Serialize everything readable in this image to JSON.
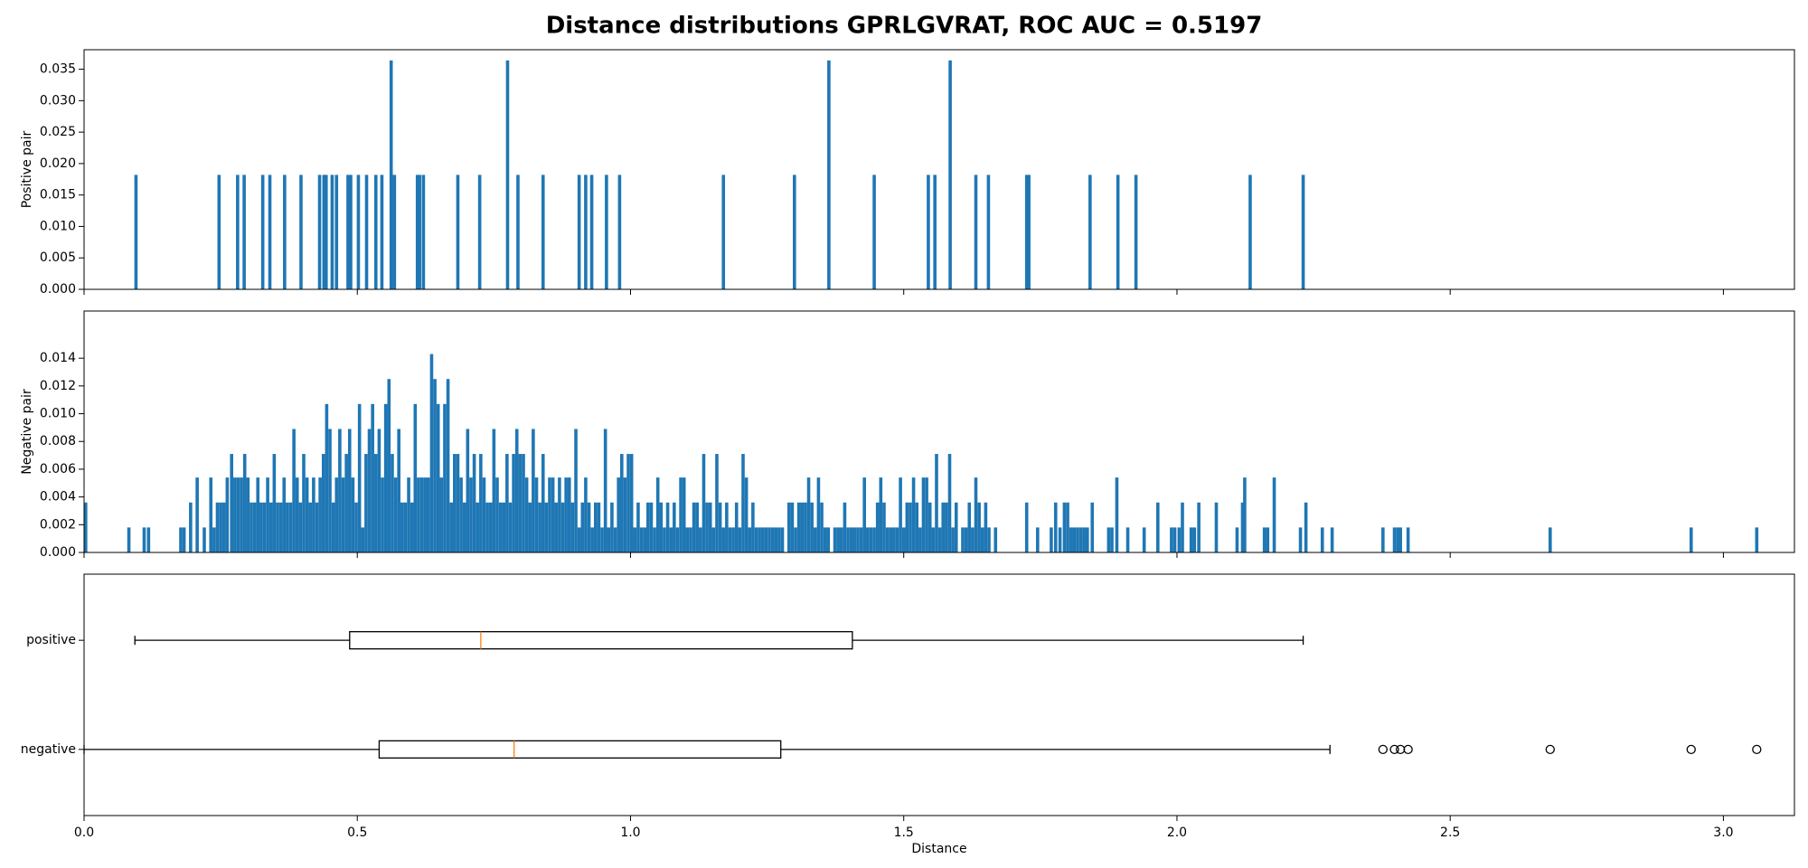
{
  "chart_data": [
    {
      "type": "bar",
      "title": "Distance distributions GPRLGVRAT, ROC AUC = 0.5197",
      "ylabel": "Positive pair",
      "color": "#1f77b4",
      "x": [
        0.095,
        0.247,
        0.281,
        0.293,
        0.327,
        0.34,
        0.367,
        0.397,
        0.431,
        0.439,
        0.443,
        0.454,
        0.462,
        0.483,
        0.488,
        0.502,
        0.517,
        0.534,
        0.545,
        0.562,
        0.568,
        0.61,
        0.614,
        0.621,
        0.684,
        0.724,
        0.775,
        0.794,
        0.84,
        0.906,
        0.918,
        0.929,
        0.956,
        0.98,
        1.17,
        1.3,
        1.363,
        1.446,
        1.545,
        1.557,
        1.585,
        1.632,
        1.655,
        1.725,
        1.729,
        1.841,
        1.892,
        1.925,
        2.134,
        2.231
      ],
      "values": [
        0.0182,
        0.0182,
        0.0182,
        0.0182,
        0.0182,
        0.0182,
        0.0182,
        0.0182,
        0.0182,
        0.0182,
        0.0182,
        0.0182,
        0.0182,
        0.0182,
        0.0182,
        0.0182,
        0.0182,
        0.0182,
        0.0182,
        0.0364,
        0.0182,
        0.0182,
        0.0182,
        0.0182,
        0.0182,
        0.0182,
        0.0364,
        0.0182,
        0.0182,
        0.0182,
        0.0182,
        0.0182,
        0.0182,
        0.0182,
        0.0182,
        0.0182,
        0.0364,
        0.0182,
        0.0182,
        0.0182,
        0.0364,
        0.0182,
        0.0182,
        0.0182,
        0.0182,
        0.0182,
        0.0182,
        0.0182,
        0.0182,
        0.0182
      ],
      "xlim": [
        0,
        3.13
      ],
      "xticks": [
        0,
        0.5,
        1,
        1.5,
        2,
        2.5,
        3
      ],
      "ylim": [
        0,
        0.0381
      ],
      "yticks": [
        {
          "value": 0,
          "label": "0.000"
        },
        {
          "value": 0.005,
          "label": "0.005"
        },
        {
          "value": 0.01,
          "label": "0.010"
        },
        {
          "value": 0.015,
          "label": "0.015"
        },
        {
          "value": 0.02,
          "label": "0.020"
        },
        {
          "value": 0.025,
          "label": "0.025"
        },
        {
          "value": 0.03,
          "label": "0.030"
        },
        {
          "value": 0.035,
          "label": "0.035"
        }
      ]
    },
    {
      "type": "bar",
      "ylabel": "Negative pair",
      "color": "#1f77b4",
      "x": [
        0.003,
        0.082,
        0.11,
        0.118,
        0.177,
        0.183,
        0.195,
        0.207,
        0.22,
        0.232,
        0.238,
        0.244,
        0.25,
        0.256,
        0.262,
        0.27,
        0.276,
        0.282,
        0.288,
        0.294,
        0.3,
        0.306,
        0.312,
        0.318,
        0.324,
        0.33,
        0.336,
        0.342,
        0.348,
        0.354,
        0.36,
        0.366,
        0.372,
        0.378,
        0.384,
        0.39,
        0.396,
        0.402,
        0.408,
        0.414,
        0.42,
        0.426,
        0.432,
        0.438,
        0.444,
        0.45,
        0.456,
        0.462,
        0.468,
        0.474,
        0.48,
        0.486,
        0.492,
        0.498,
        0.504,
        0.51,
        0.516,
        0.522,
        0.528,
        0.534,
        0.54,
        0.546,
        0.552,
        0.558,
        0.564,
        0.57,
        0.576,
        0.582,
        0.588,
        0.594,
        0.6,
        0.606,
        0.612,
        0.618,
        0.624,
        0.63,
        0.636,
        0.642,
        0.648,
        0.654,
        0.66,
        0.666,
        0.672,
        0.678,
        0.684,
        0.69,
        0.696,
        0.702,
        0.708,
        0.714,
        0.72,
        0.726,
        0.732,
        0.738,
        0.744,
        0.75,
        0.756,
        0.762,
        0.768,
        0.774,
        0.78,
        0.786,
        0.792,
        0.798,
        0.804,
        0.81,
        0.816,
        0.822,
        0.828,
        0.834,
        0.84,
        0.846,
        0.852,
        0.858,
        0.864,
        0.87,
        0.876,
        0.882,
        0.888,
        0.894,
        0.9,
        0.906,
        0.912,
        0.918,
        0.924,
        0.93,
        0.936,
        0.942,
        0.948,
        0.954,
        0.96,
        0.966,
        0.972,
        0.978,
        0.984,
        0.99,
        0.996,
        1.002,
        1.008,
        1.014,
        1.02,
        1.026,
        1.032,
        1.038,
        1.044,
        1.05,
        1.056,
        1.062,
        1.068,
        1.074,
        1.08,
        1.086,
        1.092,
        1.098,
        1.104,
        1.11,
        1.116,
        1.122,
        1.128,
        1.134,
        1.14,
        1.146,
        1.152,
        1.158,
        1.164,
        1.17,
        1.176,
        1.182,
        1.188,
        1.194,
        1.2,
        1.206,
        1.212,
        1.218,
        1.224,
        1.23,
        1.236,
        1.242,
        1.248,
        1.254,
        1.26,
        1.266,
        1.272,
        1.278,
        1.29,
        1.296,
        1.302,
        1.308,
        1.314,
        1.32,
        1.326,
        1.332,
        1.338,
        1.344,
        1.35,
        1.356,
        1.362,
        1.374,
        1.38,
        1.386,
        1.392,
        1.398,
        1.404,
        1.41,
        1.416,
        1.422,
        1.428,
        1.434,
        1.44,
        1.446,
        1.452,
        1.458,
        1.464,
        1.47,
        1.476,
        1.482,
        1.488,
        1.494,
        1.5,
        1.506,
        1.512,
        1.518,
        1.524,
        1.53,
        1.536,
        1.542,
        1.548,
        1.554,
        1.56,
        1.566,
        1.572,
        1.578,
        1.584,
        1.59,
        1.596,
        1.608,
        1.614,
        1.62,
        1.626,
        1.632,
        1.638,
        1.644,
        1.65,
        1.656,
        1.668,
        1.725,
        1.745,
        1.77,
        1.778,
        1.786,
        1.794,
        1.8,
        1.806,
        1.812,
        1.818,
        1.824,
        1.83,
        1.836,
        1.845,
        1.875,
        1.881,
        1.89,
        1.91,
        1.94,
        1.965,
        1.99,
        1.996,
        2.004,
        2.01,
        2.026,
        2.032,
        2.04,
        2.072,
        2.11,
        2.12,
        2.124,
        2.16,
        2.166,
        2.178,
        2.226,
        2.236,
        2.266,
        2.284,
        2.377,
        2.398,
        2.404,
        2.409,
        2.423,
        2.683,
        2.941,
        3.061
      ],
      "values": [
        0.0036,
        0.0018,
        0.0018,
        0.0018,
        0.0018,
        0.0018,
        0.0036,
        0.0054,
        0.0018,
        0.0054,
        0.0018,
        0.0036,
        0.0036,
        0.0036,
        0.0054,
        0.0071,
        0.0054,
        0.0054,
        0.0054,
        0.0071,
        0.0054,
        0.0036,
        0.0036,
        0.0054,
        0.0036,
        0.0036,
        0.0054,
        0.0036,
        0.0071,
        0.0036,
        0.0036,
        0.0054,
        0.0036,
        0.0036,
        0.0089,
        0.0054,
        0.0036,
        0.0071,
        0.0054,
        0.0036,
        0.0054,
        0.0036,
        0.0054,
        0.0071,
        0.0107,
        0.0089,
        0.0036,
        0.0054,
        0.0089,
        0.0054,
        0.0071,
        0.0089,
        0.0054,
        0.0036,
        0.0107,
        0.0018,
        0.0071,
        0.0089,
        0.0107,
        0.0071,
        0.0089,
        0.0054,
        0.0107,
        0.0125,
        0.0071,
        0.0054,
        0.0089,
        0.0036,
        0.0036,
        0.0054,
        0.0036,
        0.0107,
        0.0054,
        0.0054,
        0.0054,
        0.0054,
        0.0143,
        0.0125,
        0.0107,
        0.0054,
        0.0107,
        0.0125,
        0.0036,
        0.0071,
        0.0071,
        0.0054,
        0.0036,
        0.0089,
        0.0054,
        0.0071,
        0.0036,
        0.0071,
        0.0054,
        0.0036,
        0.0036,
        0.0089,
        0.0054,
        0.0036,
        0.0036,
        0.0071,
        0.0036,
        0.0071,
        0.0089,
        0.0071,
        0.0071,
        0.0054,
        0.0036,
        0.0089,
        0.0054,
        0.0036,
        0.0071,
        0.0036,
        0.0054,
        0.0054,
        0.0036,
        0.0054,
        0.0036,
        0.0054,
        0.0054,
        0.0036,
        0.0089,
        0.0018,
        0.0036,
        0.0054,
        0.0036,
        0.0018,
        0.0036,
        0.0036,
        0.0018,
        0.0089,
        0.0018,
        0.0036,
        0.0018,
        0.0054,
        0.0071,
        0.0054,
        0.0071,
        0.0071,
        0.0018,
        0.0036,
        0.0018,
        0.0018,
        0.0036,
        0.0036,
        0.0018,
        0.0054,
        0.0036,
        0.0018,
        0.0036,
        0.0018,
        0.0036,
        0.0018,
        0.0054,
        0.0054,
        0.0018,
        0.0018,
        0.0036,
        0.0036,
        0.0018,
        0.0071,
        0.0036,
        0.0036,
        0.0018,
        0.0071,
        0.0036,
        0.0018,
        0.0036,
        0.0018,
        0.0018,
        0.0036,
        0.0018,
        0.0071,
        0.0054,
        0.0018,
        0.0036,
        0.0018,
        0.0018,
        0.0018,
        0.0018,
        0.0018,
        0.0018,
        0.0018,
        0.0018,
        0.0018,
        0.0036,
        0.0036,
        0.0018,
        0.0036,
        0.0036,
        0.0036,
        0.0054,
        0.0036,
        0.0018,
        0.0054,
        0.0036,
        0.0018,
        0.0018,
        0.0018,
        0.0018,
        0.0018,
        0.0036,
        0.0018,
        0.0018,
        0.0018,
        0.0018,
        0.0018,
        0.0054,
        0.0018,
        0.0018,
        0.0018,
        0.0036,
        0.0054,
        0.0036,
        0.0018,
        0.0018,
        0.0018,
        0.0018,
        0.0054,
        0.0018,
        0.0036,
        0.0036,
        0.0054,
        0.0036,
        0.0018,
        0.0054,
        0.0054,
        0.0036,
        0.0018,
        0.0071,
        0.0018,
        0.0036,
        0.0036,
        0.0071,
        0.0018,
        0.0036,
        0.0018,
        0.0018,
        0.0036,
        0.0018,
        0.0054,
        0.0036,
        0.0018,
        0.0036,
        0.0018,
        0.0018,
        0.0036,
        0.0018,
        0.0018,
        0.0036,
        0.0018,
        0.0036,
        0.0036,
        0.0018,
        0.0018,
        0.0018,
        0.0018,
        0.0018,
        0.0018,
        0.0036,
        0.0018,
        0.0018,
        0.0054,
        0.0018,
        0.0018,
        0.0036,
        0.0018,
        0.0018,
        0.0018,
        0.0036,
        0.0018,
        0.0018,
        0.0036,
        0.0036,
        0.0018,
        0.0036,
        0.0054,
        0.0018,
        0.0018,
        0.0054,
        0.0018,
        0.0036,
        0.0018,
        0.0018,
        0.0018,
        0.0018,
        0.0018,
        0.0018,
        0.0018,
        0.0018,
        0.0018,
        0.0018
      ],
      "xlim": [
        0,
        3.13
      ],
      "xticks": [
        0,
        0.5,
        1,
        1.5,
        2,
        2.5,
        3
      ],
      "ylim": [
        0,
        0.0174
      ],
      "yticks": [
        {
          "value": 0,
          "label": "0.000"
        },
        {
          "value": 0.002,
          "label": "0.002"
        },
        {
          "value": 0.004,
          "label": "0.004"
        },
        {
          "value": 0.006,
          "label": "0.006"
        },
        {
          "value": 0.008,
          "label": "0.008"
        },
        {
          "value": 0.01,
          "label": "0.010"
        },
        {
          "value": 0.012,
          "label": "0.012"
        },
        {
          "value": 0.014,
          "label": "0.014"
        }
      ]
    },
    {
      "type": "boxplot",
      "xlabel": "Distance",
      "color": "#000000",
      "median_color": "#ff7f0e",
      "categories": [
        "positive",
        "negative"
      ],
      "boxes": [
        {
          "whislo": 0.093,
          "q1": 0.486,
          "med": 0.726,
          "q3": 1.406,
          "whishi": 2.231,
          "fliers": []
        },
        {
          "whislo": 0.0,
          "q1": 0.54,
          "med": 0.787,
          "q3": 1.275,
          "whishi": 2.28,
          "fliers": [
            2.377,
            2.398,
            2.409,
            2.423,
            2.683,
            2.941,
            3.061
          ]
        }
      ],
      "xlim": [
        0,
        3.13
      ],
      "xticks": [
        {
          "value": 0,
          "label": "0.0"
        },
        {
          "value": 0.5,
          "label": "0.5"
        },
        {
          "value": 1,
          "label": "1.0"
        },
        {
          "value": 1.5,
          "label": "1.5"
        },
        {
          "value": 2,
          "label": "2.0"
        },
        {
          "value": 2.5,
          "label": "2.5"
        },
        {
          "value": 3,
          "label": "3.0"
        }
      ]
    }
  ]
}
